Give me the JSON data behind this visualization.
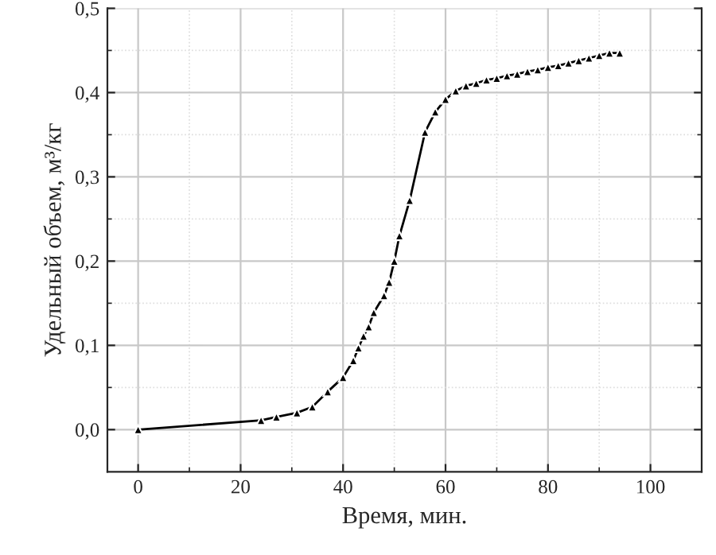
{
  "chart_data": {
    "type": "line",
    "xlabel": "Время, мин.",
    "ylabel": "Удельный объем, м³/кг",
    "x": [
      0,
      24,
      27,
      31,
      34,
      37,
      40,
      42,
      43,
      44,
      45,
      46,
      48,
      49,
      50,
      51,
      53,
      56,
      58,
      60,
      62,
      64,
      66,
      68,
      70,
      72,
      74,
      76,
      78,
      80,
      82,
      84,
      86,
      88,
      90,
      92,
      94
    ],
    "series": [
      {
        "color": "#000000",
        "values": [
          0.0,
          0.011,
          0.015,
          0.02,
          0.027,
          0.045,
          0.062,
          0.082,
          0.097,
          0.111,
          0.122,
          0.139,
          0.159,
          0.175,
          0.2,
          0.23,
          0.272,
          0.353,
          0.377,
          0.392,
          0.402,
          0.408,
          0.411,
          0.415,
          0.417,
          0.42,
          0.422,
          0.425,
          0.427,
          0.43,
          0.432,
          0.435,
          0.438,
          0.441,
          0.444,
          0.447,
          0.447
        ]
      }
    ],
    "xlim": [
      -6,
      110
    ],
    "ylim": [
      -0.05,
      0.5
    ],
    "xticks": [
      0,
      20,
      40,
      60,
      80,
      100
    ],
    "yticks": [
      {
        "value": 0,
        "label": "0,0"
      },
      {
        "value": 0.1,
        "label": "0,1"
      },
      {
        "value": 0.2,
        "label": "0,2"
      },
      {
        "value": 0.3,
        "label": "0,3"
      },
      {
        "value": 0.4,
        "label": "0,4"
      },
      {
        "value": 0.5,
        "label": "0,5"
      }
    ],
    "grid": true,
    "marker": "triangle",
    "line_style": "solid",
    "legend": false
  }
}
